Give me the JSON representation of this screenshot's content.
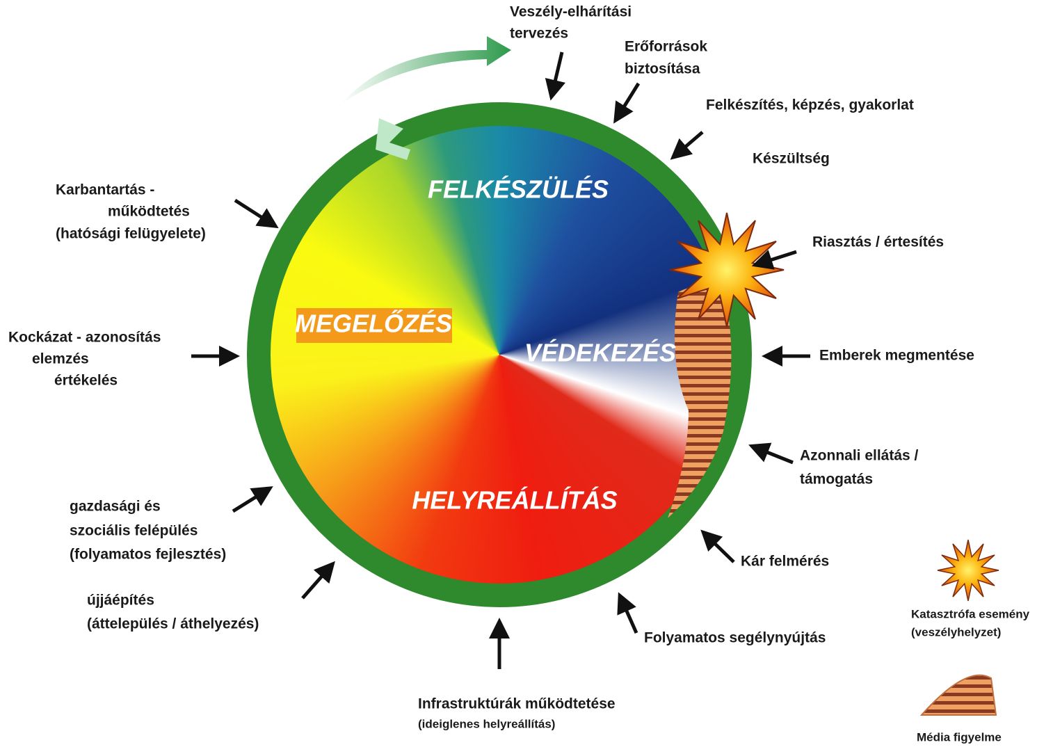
{
  "phases": [
    "FELKÉSZÜLÉS",
    "MEGELŐZÉS",
    "VÉDEKEZÉS",
    "HELYREÁLLÍTÁS"
  ],
  "activities": [
    [
      "Veszély-elhárítási",
      "tervezés"
    ],
    [
      "Erőforrások",
      "biztosítása"
    ],
    [
      "Felkészítés, képzés, gyakorlat"
    ],
    [
      "Készültség"
    ],
    [
      "Riasztás / értesítés"
    ],
    [
      "Emberek megmentése"
    ],
    [
      "Azonnali ellátás /",
      "támogatás"
    ],
    [
      "Kár felmérés"
    ],
    [
      "Folyamatos segélynyújtás"
    ],
    [
      "Infrastruktúrák működtetése",
      "(ideiglenes helyreállítás)"
    ],
    [
      "újjáépítés",
      "(áttelepülés / áthelyezés)"
    ],
    [
      "gazdasági és",
      "szociális felépülés",
      "(folyamatos fejlesztés)"
    ],
    [
      "Kockázat - azonosítás",
      "elemzés",
      "értékelés"
    ],
    [
      "Karbantartás -",
      "működtetés",
      "(hatósági felügyelete)"
    ]
  ],
  "legend": [
    [
      "Katasztrófa esemény",
      "(veszélyhelyzet)"
    ],
    [
      "Média figyelme"
    ]
  ]
}
